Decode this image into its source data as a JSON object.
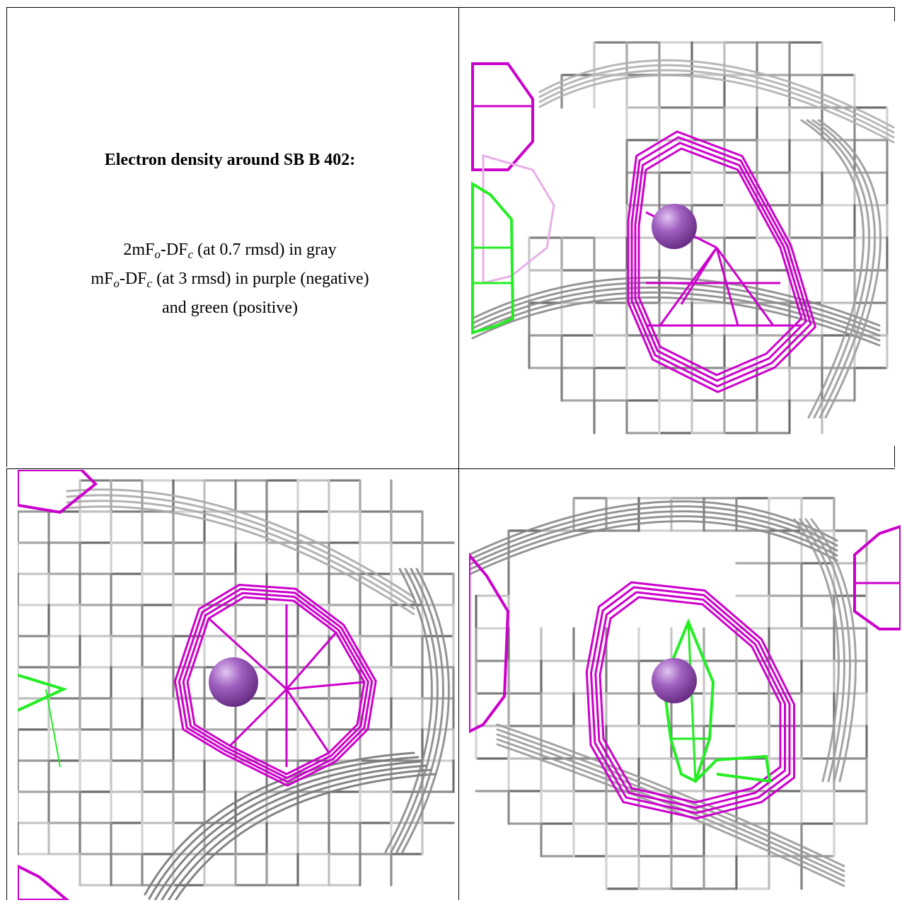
{
  "caption": {
    "title": "Electron density around SB B 402:",
    "line1_prefix": "2mF",
    "line1_sub1": "o",
    "line1_mid": "-DF",
    "line1_sub2": "c",
    "line1_suffix": " (at 0.7 rmsd) in gray",
    "line2_prefix": "mF",
    "line2_sub1": "o",
    "line2_mid": "-DF",
    "line2_sub2": "c",
    "line2_suffix": " (at 3 rmsd) in purple (negative)",
    "line3": "and green (positive)"
  },
  "colors": {
    "gray_mesh": "#9a9a9a",
    "purple_mesh": "#cc00cc",
    "green_mesh": "#22ee22",
    "atom": "#a060c0"
  },
  "panels": [
    {
      "name": "view-1",
      "atom": "SB"
    },
    {
      "name": "view-2",
      "atom": "SB"
    },
    {
      "name": "view-3",
      "atom": "SB"
    }
  ]
}
